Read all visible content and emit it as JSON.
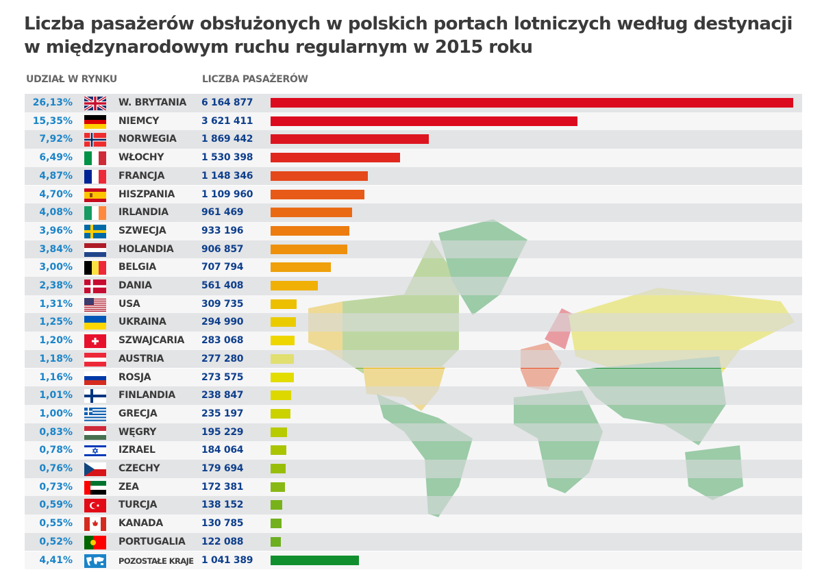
{
  "chart_data": {
    "type": "bar",
    "orientation": "horizontal",
    "title": "Liczba pasażerów obsłużonych w polskich portach lotniczych według destynacji w międzynarodowym ruchu regularnym w 2015 roku",
    "col_share": "UDZIAŁ W RYNKU",
    "col_count": "LICZBA PASAŻERÓW",
    "rows": [
      {
        "share": "26,13%",
        "country": "W. BRYTANIA",
        "count": "6 164 877",
        "value": 6164877,
        "color": "#dc0a1e",
        "flag": "uk-flag-icon"
      },
      {
        "share": "15,35%",
        "country": "NIEMCY",
        "count": "3 621 411",
        "value": 3621411,
        "color": "#dc0a1e",
        "flag": "germany-flag-icon"
      },
      {
        "share": "7,92%",
        "country": "NORWEGIA",
        "count": "1 869 442",
        "value": 1869442,
        "color": "#dc1420",
        "flag": "norway-flag-icon"
      },
      {
        "share": "6,49%",
        "country": "WŁOCHY",
        "count": "1 530 398",
        "value": 1530398,
        "color": "#e0281e",
        "flag": "italy-flag-icon"
      },
      {
        "share": "4,87%",
        "country": "FRANCJA",
        "count": "1 148 346",
        "value": 1148346,
        "color": "#e5481a",
        "flag": "france-flag-icon"
      },
      {
        "share": "4,70%",
        "country": "HISZPANIA",
        "count": "1 109 960",
        "value": 1109960,
        "color": "#e75a17",
        "flag": "spain-flag-icon"
      },
      {
        "share": "4,08%",
        "country": "IRLANDIA",
        "count": "961 469",
        "value": 961469,
        "color": "#ea6a14",
        "flag": "ireland-flag-icon"
      },
      {
        "share": "3,96%",
        "country": "SZWECJA",
        "count": "933 196",
        "value": 933196,
        "color": "#ec7c10",
        "flag": "sweden-flag-icon"
      },
      {
        "share": "3,84%",
        "country": "HOLANDIA",
        "count": "906 857",
        "value": 906857,
        "color": "#ee900c",
        "flag": "netherlands-flag-icon"
      },
      {
        "share": "3,00%",
        "country": "BELGIA",
        "count": "707 794",
        "value": 707794,
        "color": "#efa00a",
        "flag": "belgium-flag-icon"
      },
      {
        "share": "2,38%",
        "country": "DANIA",
        "count": "561 408",
        "value": 561408,
        "color": "#f0b006",
        "flag": "denmark-flag-icon"
      },
      {
        "share": "1,31%",
        "country": "USA",
        "count": "309 735",
        "value": 309735,
        "color": "#ecbf00",
        "flag": "usa-flag-icon"
      },
      {
        "share": "1,25%",
        "country": "UKRAINA",
        "count": "294 990",
        "value": 294990,
        "color": "#eacb00",
        "flag": "ukraine-flag-icon"
      },
      {
        "share": "1,20%",
        "country": "SZWAJCARIA",
        "count": "283 068",
        "value": 283068,
        "color": "#eed600",
        "flag": "switzerland-flag-icon"
      },
      {
        "share": "1,18%",
        "country": "AUSTRIA",
        "count": "277 280",
        "value": 277280,
        "color": "#e0df70",
        "flag": "austria-flag-icon"
      },
      {
        "share": "1,16%",
        "country": "ROSJA",
        "count": "273 575",
        "value": 273575,
        "color": "#e2dc00",
        "flag": "russia-flag-icon"
      },
      {
        "share": "1,01%",
        "country": "FINLANDIA",
        "count": "238 847",
        "value": 238847,
        "color": "#dcd800",
        "flag": "finland-flag-icon"
      },
      {
        "share": "1,00%",
        "country": "GRECJA",
        "count": "235 197",
        "value": 235197,
        "color": "#ccd200",
        "flag": "greece-flag-icon"
      },
      {
        "share": "0,83%",
        "country": "WĘGRY",
        "count": "195 229",
        "value": 195229,
        "color": "#b8ca00",
        "flag": "hungary-flag-icon"
      },
      {
        "share": "0,78%",
        "country": "IZRAEL",
        "count": "184 064",
        "value": 184064,
        "color": "#aac400",
        "flag": "israel-flag-icon"
      },
      {
        "share": "0,76%",
        "country": "CZECHY",
        "count": "179 694",
        "value": 179694,
        "color": "#98be0a",
        "flag": "czechia-flag-icon"
      },
      {
        "share": "0,73%",
        "country": "ZEA",
        "count": "172 381",
        "value": 172381,
        "color": "#88b814",
        "flag": "uae-flag-icon"
      },
      {
        "share": "0,59%",
        "country": "TURCJA",
        "count": "138 152",
        "value": 138152,
        "color": "#78b21a",
        "flag": "turkey-flag-icon"
      },
      {
        "share": "0,55%",
        "country": "KANADA",
        "count": "130 785",
        "value": 130785,
        "color": "#72b01e",
        "flag": "canada-flag-icon"
      },
      {
        "share": "0,52%",
        "country": "PORTUGALIA",
        "count": "122 088",
        "value": 122088,
        "color": "#6cae20",
        "flag": "portugal-flag-icon"
      },
      {
        "share": "4,41%",
        "country": "POZOSTAŁE KRAJE",
        "count": "1 041 389",
        "value": 1041389,
        "color": "#118f2e",
        "flag": "world-map-icon"
      }
    ],
    "xlim": [
      0,
      6164877
    ],
    "grid": false,
    "legend": "none",
    "background": "world map colored by passenger volume"
  }
}
